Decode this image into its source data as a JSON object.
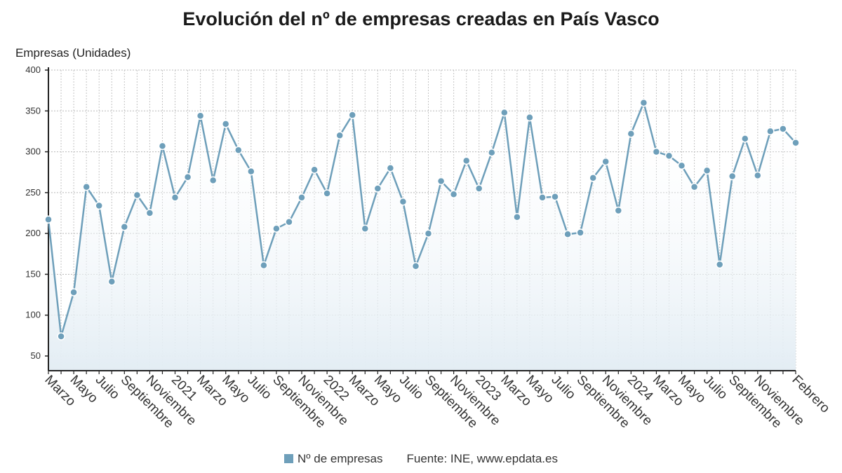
{
  "chart_data": {
    "type": "area",
    "title": "Evolución del nº de empresas creadas en País Vasco",
    "ylabel": "Empresas (Unidades)",
    "ylim": [
      32,
      400
    ],
    "yticks": [
      50,
      100,
      150,
      200,
      250,
      300,
      350,
      400
    ],
    "grid": true,
    "legend_position": "bottom",
    "source": "Fuente: INE, www.epdata.es",
    "color": "#6e9fba",
    "x": [
      "Marzo 2020",
      "Abril 2020",
      "Mayo 2020",
      "Junio 2020",
      "Julio 2020",
      "Agosto 2020",
      "Septiembre 2020",
      "Octubre 2020",
      "Noviembre 2020",
      "Diciembre 2020",
      "2021",
      "Febrero 2021",
      "Marzo 2021",
      "Abril 2021",
      "Mayo 2021",
      "Junio 2021",
      "Julio 2021",
      "Agosto 2021",
      "Septiembre 2021",
      "Octubre 2021",
      "Noviembre 2021",
      "Diciembre 2021",
      "2022",
      "Febrero 2022",
      "Marzo 2022",
      "Abril 2022",
      "Mayo 2022",
      "Junio 2022",
      "Julio 2022",
      "Agosto 2022",
      "Septiembre 2022",
      "Octubre 2022",
      "Noviembre 2022",
      "Diciembre 2022",
      "2023",
      "Febrero 2023",
      "Marzo 2023",
      "Abril 2023",
      "Mayo 2023",
      "Junio 2023",
      "Julio 2023",
      "Agosto 2023",
      "Septiembre 2023",
      "Octubre 2023",
      "Noviembre 2023",
      "Diciembre 2023",
      "2024",
      "Febrero 2024",
      "Marzo 2024",
      "Abril 2024",
      "Mayo 2024",
      "Junio 2024",
      "Julio 2024",
      "Agosto 2024",
      "Septiembre 2024",
      "Octubre 2024",
      "Noviembre 2024",
      "Diciembre 2024",
      "Enero 2025",
      "Febrero 2025"
    ],
    "tick_labels": [
      {
        "i": 0,
        "label": "Marzo"
      },
      {
        "i": 2,
        "label": "Mayo"
      },
      {
        "i": 4,
        "label": "Julio"
      },
      {
        "i": 6,
        "label": "Septiembre"
      },
      {
        "i": 8,
        "label": "Noviembre"
      },
      {
        "i": 10,
        "label": "2021"
      },
      {
        "i": 12,
        "label": "Marzo"
      },
      {
        "i": 14,
        "label": "Mayo"
      },
      {
        "i": 16,
        "label": "Julio"
      },
      {
        "i": 18,
        "label": "Septiembre"
      },
      {
        "i": 20,
        "label": "Noviembre"
      },
      {
        "i": 22,
        "label": "2022"
      },
      {
        "i": 24,
        "label": "Marzo"
      },
      {
        "i": 26,
        "label": "Mayo"
      },
      {
        "i": 28,
        "label": "Julio"
      },
      {
        "i": 30,
        "label": "Septiembre"
      },
      {
        "i": 32,
        "label": "Noviembre"
      },
      {
        "i": 34,
        "label": "2023"
      },
      {
        "i": 36,
        "label": "Marzo"
      },
      {
        "i": 38,
        "label": "Mayo"
      },
      {
        "i": 40,
        "label": "Julio"
      },
      {
        "i": 42,
        "label": "Septiembre"
      },
      {
        "i": 44,
        "label": "Noviembre"
      },
      {
        "i": 46,
        "label": "2024"
      },
      {
        "i": 48,
        "label": "Marzo"
      },
      {
        "i": 50,
        "label": "Mayo"
      },
      {
        "i": 52,
        "label": "Julio"
      },
      {
        "i": 54,
        "label": "Septiembre"
      },
      {
        "i": 56,
        "label": "Noviembre"
      },
      {
        "i": 59,
        "label": "Febrero"
      }
    ],
    "series": [
      {
        "name": "Nº de empresas",
        "values": [
          217,
          74,
          128,
          257,
          234,
          141,
          208,
          247,
          225,
          307,
          244,
          269,
          344,
          265,
          334,
          302,
          276,
          161,
          206,
          214,
          244,
          278,
          249,
          320,
          345,
          206,
          255,
          280,
          239,
          160,
          200,
          264,
          248,
          289,
          255,
          299,
          348,
          220,
          342,
          244,
          245,
          199,
          201,
          268,
          288,
          228,
          322,
          360,
          300,
          295,
          283,
          257,
          277,
          162,
          270,
          316,
          271,
          325,
          328,
          311
        ]
      }
    ]
  }
}
